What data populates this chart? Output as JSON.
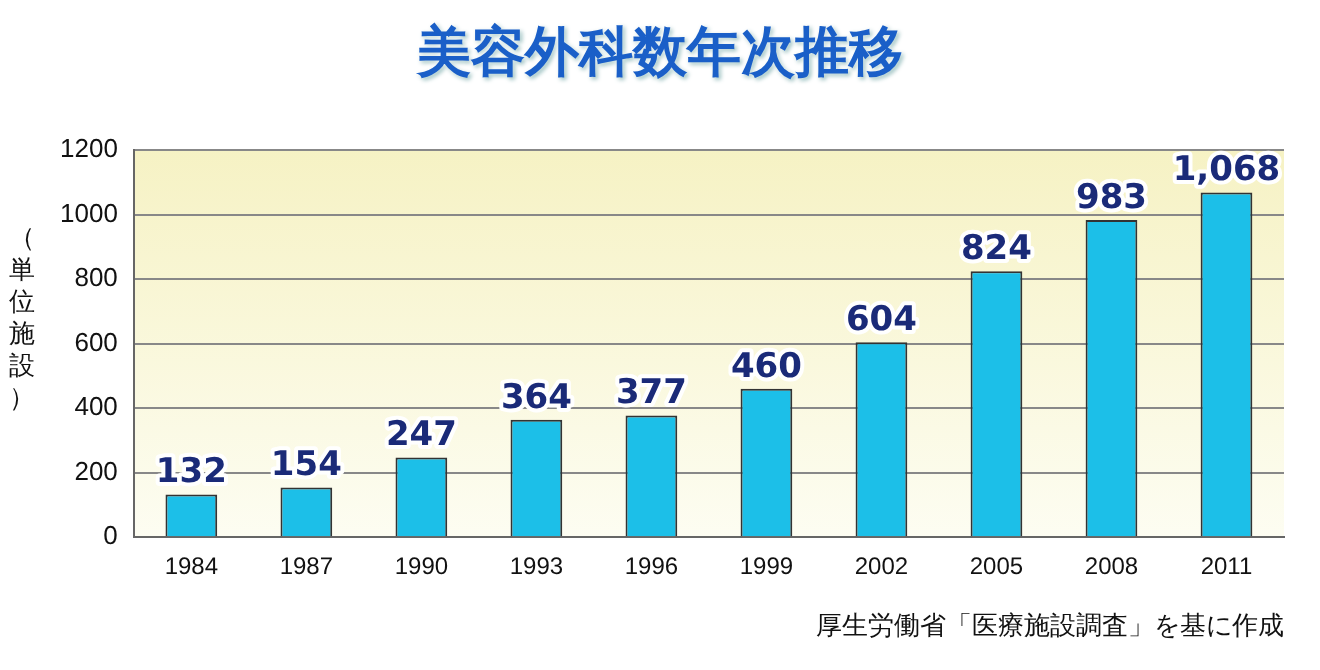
{
  "chart_data": {
    "type": "bar",
    "title": "美容外科数年次推移",
    "ylabel": "（単位施設）",
    "categories": [
      "1984",
      "1987",
      "1990",
      "1993",
      "1996",
      "1999",
      "2002",
      "2005",
      "2008",
      "2011"
    ],
    "values": [
      132,
      154,
      247,
      364,
      377,
      460,
      604,
      824,
      983,
      1068
    ],
    "value_labels": [
      "132",
      "154",
      "247",
      "364",
      "377",
      "460",
      "604",
      "824",
      "983",
      "1,068"
    ],
    "color": "#1cbfe8",
    "ylim": [
      0,
      1200
    ],
    "yticks": [
      0,
      200,
      400,
      600,
      800,
      1000,
      1200
    ],
    "grid": "y",
    "legend": false,
    "annotations": [
      "厚生労働省「医療施設調査」を基に作成"
    ]
  }
}
